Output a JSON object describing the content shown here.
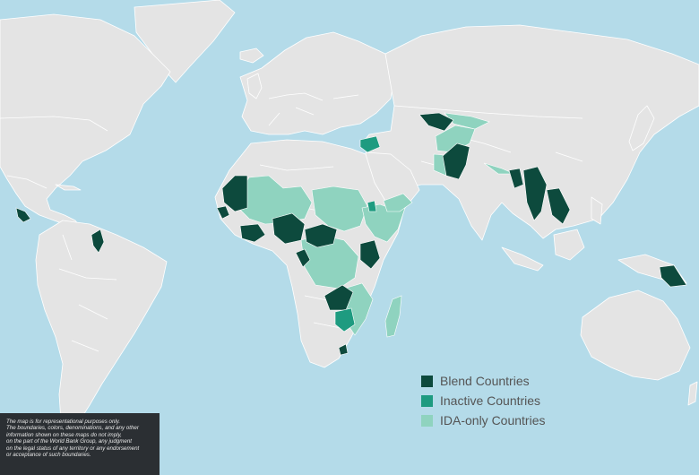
{
  "legend": {
    "items": [
      {
        "label": "Blend Countries",
        "color": "#0d4a3d"
      },
      {
        "label": "Inactive Countries",
        "color": "#1e9b80"
      },
      {
        "label": "IDA-only Countries",
        "color": "#8fd3bf"
      }
    ]
  },
  "disclaimer": {
    "lines": [
      "The map is for representational purposes only.",
      "The boundaries, colors, denominations, and any other",
      "information shown on these maps do not imply,",
      "on the part of the World Bank Group, any judgment",
      "on the legal status of any territory or any endorsement",
      "or acceptance of such boundaries."
    ]
  },
  "colors": {
    "ocean": "#b4dbe9",
    "land": "#e4e4e4",
    "borders": "#ffffff",
    "disclaimer_bg": "#2b2f33"
  }
}
